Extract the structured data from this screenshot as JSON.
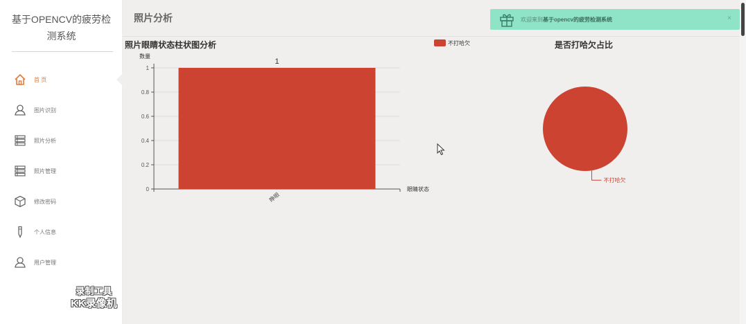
{
  "app": {
    "title": "基于OPENCV的疲劳检测系统"
  },
  "sidebar": {
    "items": [
      {
        "label": "首 页",
        "icon": "home-icon",
        "active": true
      },
      {
        "label": "图片识别",
        "icon": "user-icon",
        "active": false
      },
      {
        "label": "照片分析",
        "icon": "list-icon",
        "active": false
      },
      {
        "label": "照片管理",
        "icon": "list-icon",
        "active": false
      },
      {
        "label": "修改密码",
        "icon": "cube-icon",
        "active": false
      },
      {
        "label": "个人信息",
        "icon": "pen-icon",
        "active": false
      },
      {
        "label": "用户管理",
        "icon": "user-icon",
        "active": false
      }
    ]
  },
  "header": {
    "title": "照片分析"
  },
  "alert": {
    "prefix": "欢迎来到",
    "system_name": "基于opencv的疲劳检测系统",
    "close": "×",
    "color": "#8fe4c7"
  },
  "watermark": {
    "line1": "录制工具",
    "line2": "KK录像机"
  },
  "colors": {
    "accent": "#e07b3c",
    "series": "#cc4331"
  },
  "chart_data": [
    {
      "type": "bar",
      "title": "照片眼睛状态柱状图分析",
      "xlabel": "眼睛状态",
      "ylabel": "数量",
      "categories": [
        "睁眼"
      ],
      "series": [
        {
          "name": "不打哈欠",
          "values": [
            1
          ]
        }
      ],
      "ylim": [
        0,
        1
      ],
      "yticks": [
        "0",
        "0.2",
        "0.4",
        "0.6",
        "0.8",
        "1"
      ],
      "data_labels": [
        "1"
      ],
      "legend": "top-right",
      "grid": true
    },
    {
      "type": "pie",
      "title": "是否打哈欠占比",
      "slices": [
        {
          "label": "不打哈欠",
          "value": 1
        }
      ]
    }
  ]
}
